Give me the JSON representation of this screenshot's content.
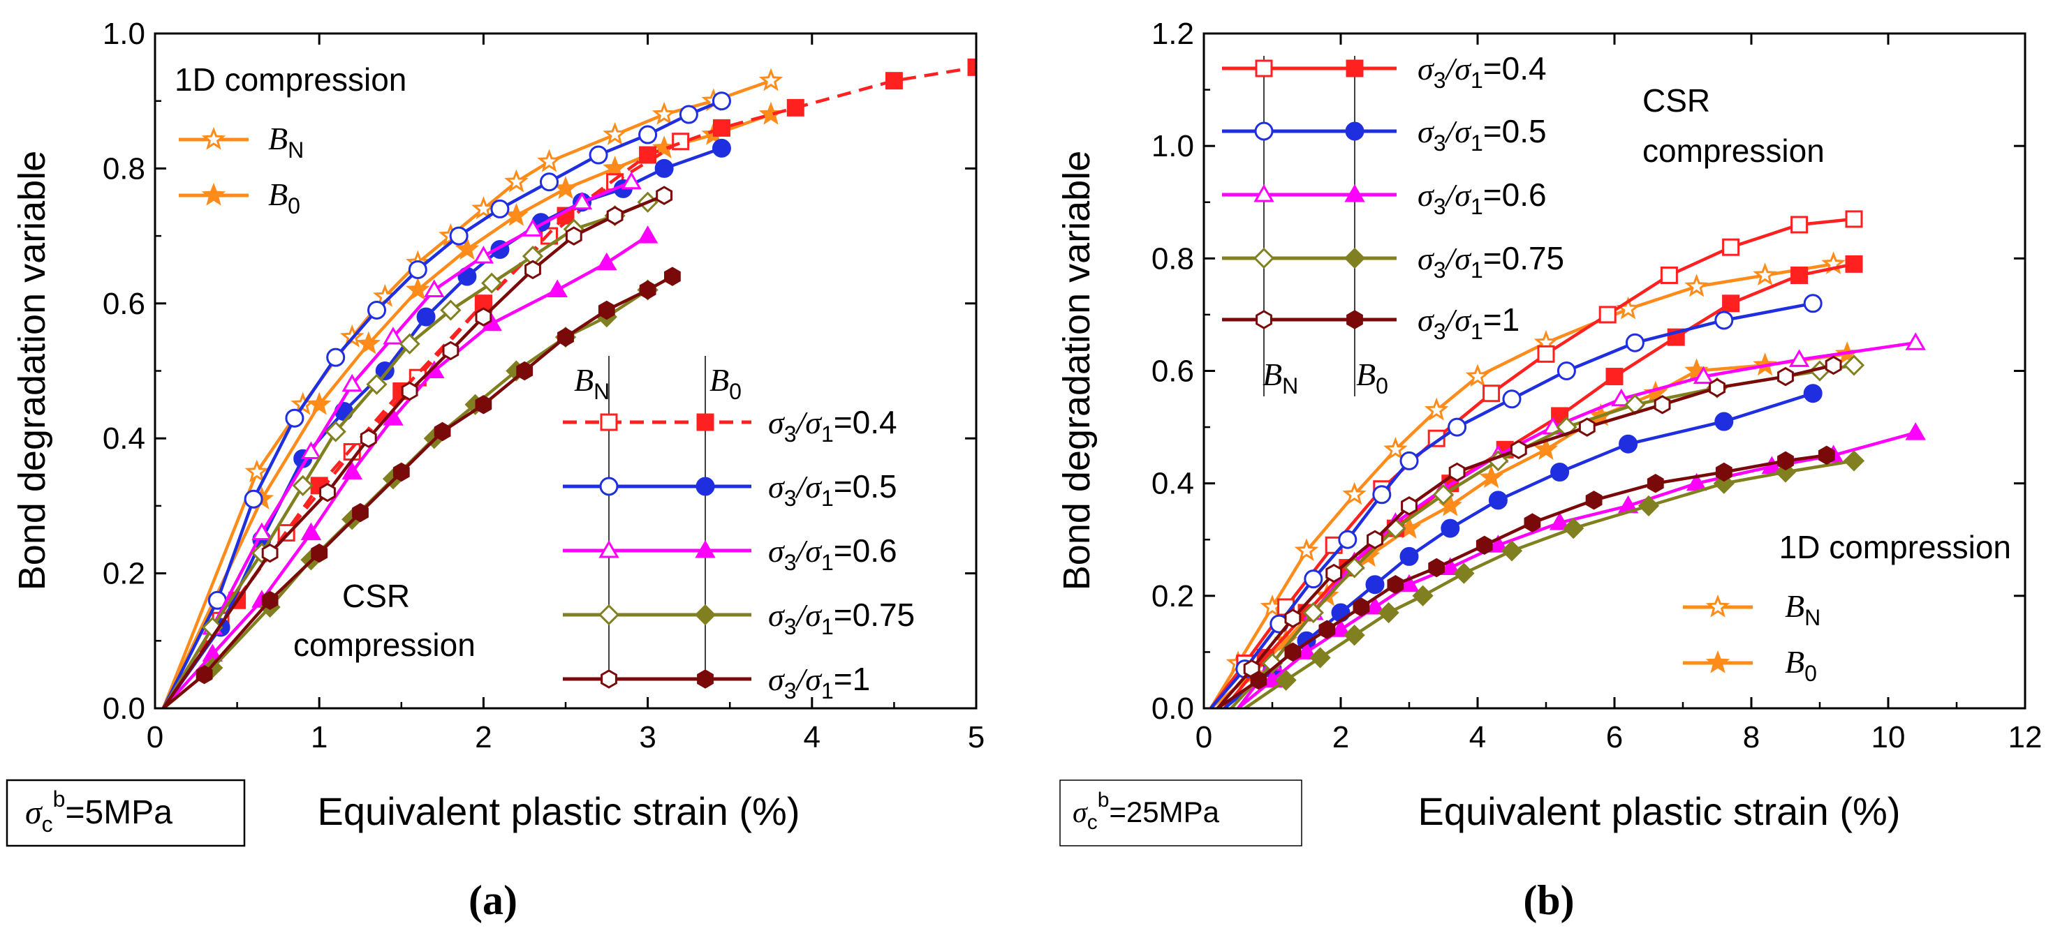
{
  "chart_data": [
    {
      "type": "line",
      "panel_label": "(a)",
      "xlabel": "Equivalent plastic strain (%)",
      "ylabel": "Bond degradation variable",
      "xlim": [
        0,
        5
      ],
      "ylim": [
        0,
        1.0
      ],
      "xticks": [
        "0",
        "1",
        "2",
        "3",
        "4",
        "5"
      ],
      "yticks": [
        "0.0",
        "0.2",
        "0.4",
        "0.6",
        "0.8",
        "1.0"
      ],
      "condition": {
        "symbol": "σ",
        "sub": "c",
        "sup": "b",
        "value": "=5MPa"
      },
      "legend_group_1d": {
        "title": "1D compression",
        "entries": [
          {
            "sym": "B",
            "sub": "N",
            "marker": "star-open"
          },
          {
            "sym": "B",
            "sub": "0",
            "marker": "star-filled"
          }
        ]
      },
      "legend_group_csr": {
        "title_lines": [
          "CSR",
          "compression"
        ],
        "col_headers": [
          {
            "sym": "B",
            "sub": "N"
          },
          {
            "sym": "B",
            "sub": "0"
          }
        ],
        "ratio_entries": [
          {
            "prefix": "σ",
            "sub_a": "3",
            "mid": "/σ",
            "sub_b": "1",
            "value": "=0.4"
          },
          {
            "prefix": "σ",
            "sub_a": "3",
            "mid": "/σ",
            "sub_b": "1",
            "value": "=0.5"
          },
          {
            "prefix": "σ",
            "sub_a": "3",
            "mid": "/σ",
            "sub_b": "1",
            "value": "=0.6"
          },
          {
            "prefix": "σ",
            "sub_a": "3",
            "mid": "/σ",
            "sub_b": "1",
            "value": "=0.75"
          },
          {
            "prefix": "σ",
            "sub_a": "3",
            "mid": "/σ",
            "sub_b": "1",
            "value": "=1"
          }
        ]
      },
      "series": [
        {
          "name": "1D B_N",
          "color": "#FF8C1A",
          "marker": "star",
          "filled": false,
          "x": [
            0.05,
            0.62,
            0.9,
            1.2,
            1.4,
            1.6,
            1.8,
            2.0,
            2.2,
            2.4,
            2.8,
            3.1,
            3.4,
            3.75
          ],
          "y": [
            0.0,
            0.35,
            0.45,
            0.55,
            0.61,
            0.66,
            0.7,
            0.74,
            0.78,
            0.81,
            0.85,
            0.88,
            0.9,
            0.93
          ]
        },
        {
          "name": "1D B_0",
          "color": "#FF8C1A",
          "marker": "star",
          "filled": true,
          "x": [
            0.05,
            0.65,
            1.0,
            1.3,
            1.6,
            1.9,
            2.2,
            2.5,
            2.8,
            3.1,
            3.4,
            3.75
          ],
          "y": [
            0.0,
            0.31,
            0.45,
            0.54,
            0.62,
            0.68,
            0.73,
            0.77,
            0.8,
            0.83,
            0.85,
            0.88
          ]
        },
        {
          "name": "σ3/σ1=0.4 B_N",
          "color": "#FF2020",
          "marker": "square",
          "filled": false,
          "dashed": true,
          "x": [
            0.05,
            0.4,
            0.8,
            1.2,
            1.6,
            2.0,
            2.4,
            2.8,
            3.2
          ],
          "y": [
            0.0,
            0.13,
            0.26,
            0.38,
            0.49,
            0.6,
            0.7,
            0.78,
            0.84
          ]
        },
        {
          "name": "σ3/σ1=0.4 B_0",
          "color": "#FF2020",
          "marker": "square",
          "filled": true,
          "dashed": true,
          "x": [
            0.05,
            0.5,
            1.0,
            1.5,
            2.0,
            2.5,
            3.0,
            3.45,
            3.9,
            4.5,
            5.0
          ],
          "y": [
            0.0,
            0.16,
            0.33,
            0.47,
            0.6,
            0.73,
            0.82,
            0.86,
            0.89,
            0.93,
            0.95
          ]
        },
        {
          "name": "σ3/σ1=0.5 B_N",
          "color": "#1F2FE0",
          "marker": "circle",
          "filled": false,
          "x": [
            0.05,
            0.38,
            0.6,
            0.85,
            1.1,
            1.35,
            1.6,
            1.85,
            2.1,
            2.4,
            2.7,
            3.0,
            3.25,
            3.45
          ],
          "y": [
            0.0,
            0.16,
            0.31,
            0.43,
            0.52,
            0.59,
            0.65,
            0.7,
            0.74,
            0.78,
            0.82,
            0.85,
            0.88,
            0.9
          ]
        },
        {
          "name": "σ3/σ1=0.5 B_0",
          "color": "#1F2FE0",
          "marker": "circle",
          "filled": true,
          "x": [
            0.05,
            0.4,
            0.65,
            0.9,
            1.15,
            1.4,
            1.65,
            1.9,
            2.1,
            2.35,
            2.6,
            2.85,
            3.1,
            3.45
          ],
          "y": [
            0.0,
            0.12,
            0.25,
            0.37,
            0.44,
            0.5,
            0.58,
            0.64,
            0.68,
            0.72,
            0.75,
            0.77,
            0.8,
            0.83
          ]
        },
        {
          "name": "σ3/σ1=0.6 B_N",
          "color": "#FF00FF",
          "marker": "triangle",
          "filled": false,
          "x": [
            0.05,
            0.35,
            0.65,
            0.95,
            1.2,
            1.45,
            1.7,
            2.0,
            2.3,
            2.6,
            2.9
          ],
          "y": [
            0.0,
            0.12,
            0.26,
            0.38,
            0.48,
            0.55,
            0.62,
            0.67,
            0.71,
            0.75,
            0.78
          ]
        },
        {
          "name": "σ3/σ1=0.6 B_0",
          "color": "#FF00FF",
          "marker": "triangle",
          "filled": true,
          "x": [
            0.05,
            0.35,
            0.65,
            0.95,
            1.2,
            1.45,
            1.7,
            2.05,
            2.45,
            2.75,
            3.0
          ],
          "y": [
            0.0,
            0.08,
            0.16,
            0.26,
            0.35,
            0.43,
            0.5,
            0.57,
            0.62,
            0.66,
            0.7
          ]
        },
        {
          "name": "σ3/σ1=0.75 B_N",
          "color": "#808020",
          "marker": "diamond",
          "filled": false,
          "x": [
            0.05,
            0.35,
            0.65,
            0.9,
            1.1,
            1.35,
            1.55,
            1.8,
            2.05,
            2.3,
            2.55,
            2.8,
            3.0
          ],
          "y": [
            0.0,
            0.12,
            0.23,
            0.33,
            0.41,
            0.48,
            0.54,
            0.59,
            0.63,
            0.67,
            0.71,
            0.73,
            0.75
          ]
        },
        {
          "name": "σ3/σ1=0.75 B_0",
          "color": "#808020",
          "marker": "diamond",
          "filled": true,
          "x": [
            0.05,
            0.35,
            0.7,
            0.95,
            1.2,
            1.45,
            1.7,
            1.95,
            2.2,
            2.5,
            2.75,
            3.0
          ],
          "y": [
            0.0,
            0.06,
            0.15,
            0.22,
            0.28,
            0.34,
            0.4,
            0.45,
            0.5,
            0.55,
            0.58,
            0.62
          ]
        },
        {
          "name": "σ3/σ1=1 B_N",
          "color": "#7A0A0A",
          "marker": "hexagon",
          "filled": false,
          "x": [
            0.05,
            0.7,
            1.05,
            1.3,
            1.55,
            1.8,
            2.0,
            2.3,
            2.55,
            2.8,
            3.1
          ],
          "y": [
            0.0,
            0.23,
            0.32,
            0.4,
            0.47,
            0.53,
            0.58,
            0.65,
            0.7,
            0.73,
            0.76
          ]
        },
        {
          "name": "σ3/σ1=1 B_0",
          "color": "#7A0A0A",
          "marker": "hexagon",
          "filled": true,
          "x": [
            0.05,
            0.3,
            0.7,
            1.0,
            1.25,
            1.5,
            1.75,
            2.0,
            2.25,
            2.5,
            2.75,
            3.0,
            3.15
          ],
          "y": [
            0.0,
            0.05,
            0.16,
            0.23,
            0.29,
            0.35,
            0.41,
            0.45,
            0.5,
            0.55,
            0.59,
            0.62,
            0.64
          ]
        }
      ]
    },
    {
      "type": "line",
      "panel_label": "(b)",
      "xlabel": "Equivalent plastic strain (%)",
      "ylabel": "Bond degradation variable",
      "xlim": [
        0,
        12
      ],
      "ylim": [
        0,
        1.2
      ],
      "xticks": [
        "0",
        "2",
        "4",
        "6",
        "8",
        "10",
        "12"
      ],
      "yticks": [
        "0.0",
        "0.2",
        "0.4",
        "0.6",
        "0.8",
        "1.0",
        "1.2"
      ],
      "condition": {
        "symbol": "σ",
        "sub": "c",
        "sup": "b",
        "value": "=25MPa"
      },
      "legend_group_1d": {
        "title": "1D compression",
        "entries": [
          {
            "sym": "B",
            "sub": "N",
            "marker": "star-open"
          },
          {
            "sym": "B",
            "sub": "0",
            "marker": "star-filled"
          }
        ]
      },
      "legend_group_csr": {
        "title_lines": [
          "CSR",
          "compression"
        ],
        "col_headers": [
          {
            "sym": "B",
            "sub": "N"
          },
          {
            "sym": "B",
            "sub": "0"
          }
        ],
        "ratio_entries": [
          {
            "prefix": "σ",
            "sub_a": "3",
            "mid": "/σ",
            "sub_b": "1",
            "value": "=0.4"
          },
          {
            "prefix": "σ",
            "sub_a": "3",
            "mid": "/σ",
            "sub_b": "1",
            "value": "=0.5"
          },
          {
            "prefix": "σ",
            "sub_a": "3",
            "mid": "/σ",
            "sub_b": "1",
            "value": "=0.6"
          },
          {
            "prefix": "σ",
            "sub_a": "3",
            "mid": "/σ",
            "sub_b": "1",
            "value": "=0.75"
          },
          {
            "prefix": "σ",
            "sub_a": "3",
            "mid": "/σ",
            "sub_b": "1",
            "value": "=1"
          }
        ]
      },
      "series": [
        {
          "name": "1D B_N",
          "color": "#FF8C1A",
          "marker": "star",
          "filled": false,
          "x": [
            0.1,
            0.5,
            1.0,
            1.5,
            2.2,
            2.8,
            3.4,
            4.0,
            5.0,
            6.2,
            7.2,
            8.2,
            9.2
          ],
          "y": [
            0.0,
            0.08,
            0.18,
            0.28,
            0.38,
            0.46,
            0.53,
            0.59,
            0.65,
            0.71,
            0.75,
            0.77,
            0.79
          ]
        },
        {
          "name": "1D B_0",
          "color": "#FF8C1A",
          "marker": "star",
          "filled": true,
          "x": [
            0.1,
            0.7,
            1.2,
            1.8,
            2.4,
            3.0,
            3.6,
            4.2,
            5.0,
            5.8,
            6.6,
            7.2,
            8.2,
            9.4
          ],
          "y": [
            0.0,
            0.06,
            0.12,
            0.2,
            0.27,
            0.32,
            0.36,
            0.41,
            0.46,
            0.52,
            0.56,
            0.6,
            0.61,
            0.63
          ]
        },
        {
          "name": "σ3/σ1=0.4 B_N",
          "color": "#FF2020",
          "marker": "square",
          "filled": false,
          "x": [
            0.1,
            0.6,
            1.2,
            1.9,
            2.6,
            3.4,
            4.2,
            5.0,
            5.9,
            6.8,
            7.7,
            8.7,
            9.5
          ],
          "y": [
            0.0,
            0.08,
            0.18,
            0.29,
            0.39,
            0.48,
            0.56,
            0.63,
            0.7,
            0.77,
            0.82,
            0.86,
            0.87
          ]
        },
        {
          "name": "σ3/σ1=0.4 B_0",
          "color": "#FF2020",
          "marker": "square",
          "filled": true,
          "x": [
            0.3,
            0.9,
            1.5,
            2.1,
            2.8,
            3.6,
            4.4,
            5.2,
            6.0,
            6.9,
            7.7,
            8.7,
            9.5
          ],
          "y": [
            0.0,
            0.09,
            0.17,
            0.25,
            0.32,
            0.4,
            0.46,
            0.52,
            0.59,
            0.66,
            0.72,
            0.77,
            0.79
          ]
        },
        {
          "name": "σ3/σ1=0.5 B_N",
          "color": "#1F2FE0",
          "marker": "circle",
          "filled": false,
          "x": [
            0.1,
            0.6,
            1.1,
            1.6,
            2.1,
            2.6,
            3.0,
            3.7,
            4.5,
            5.3,
            6.3,
            7.6,
            8.9
          ],
          "y": [
            0.0,
            0.07,
            0.15,
            0.23,
            0.3,
            0.38,
            0.44,
            0.5,
            0.55,
            0.6,
            0.65,
            0.69,
            0.72
          ]
        },
        {
          "name": "σ3/σ1=0.5 B_0",
          "color": "#1F2FE0",
          "marker": "circle",
          "filled": true,
          "x": [
            0.3,
            1.0,
            1.5,
            2.0,
            2.5,
            3.0,
            3.6,
            4.3,
            5.2,
            6.2,
            7.6,
            8.9
          ],
          "y": [
            0.0,
            0.07,
            0.12,
            0.17,
            0.22,
            0.27,
            0.32,
            0.37,
            0.42,
            0.47,
            0.51,
            0.56
          ]
        },
        {
          "name": "σ3/σ1=0.6 B_N",
          "color": "#FF00FF",
          "marker": "triangle",
          "filled": false,
          "x": [
            0.5,
            1.0,
            1.6,
            2.2,
            2.8,
            3.5,
            4.3,
            5.1,
            6.1,
            7.3,
            8.7,
            10.4
          ],
          "y": [
            0.0,
            0.08,
            0.17,
            0.26,
            0.33,
            0.39,
            0.45,
            0.5,
            0.55,
            0.59,
            0.62,
            0.65
          ]
        },
        {
          "name": "σ3/σ1=0.6 B_0",
          "color": "#FF00FF",
          "marker": "triangle",
          "filled": true,
          "x": [
            0.5,
            1.0,
            1.5,
            2.0,
            2.5,
            3.0,
            3.6,
            4.3,
            5.2,
            6.2,
            7.2,
            8.3,
            9.2,
            10.4
          ],
          "y": [
            0.0,
            0.05,
            0.1,
            0.14,
            0.18,
            0.22,
            0.25,
            0.29,
            0.33,
            0.36,
            0.4,
            0.43,
            0.45,
            0.49
          ]
        },
        {
          "name": "σ3/σ1=0.75 B_N",
          "color": "#808020",
          "marker": "diamond",
          "filled": false,
          "x": [
            0.4,
            1.0,
            1.6,
            2.2,
            2.8,
            3.5,
            4.3,
            5.3,
            6.3,
            7.5,
            9.0,
            9.5
          ],
          "y": [
            0.0,
            0.08,
            0.17,
            0.25,
            0.32,
            0.38,
            0.44,
            0.5,
            0.54,
            0.57,
            0.6,
            0.61
          ]
        },
        {
          "name": "σ3/σ1=0.75 B_0",
          "color": "#808020",
          "marker": "diamond",
          "filled": true,
          "x": [
            0.6,
            1.2,
            1.7,
            2.2,
            2.7,
            3.2,
            3.8,
            4.5,
            5.4,
            6.5,
            7.6,
            8.5,
            9.5
          ],
          "y": [
            0.0,
            0.05,
            0.09,
            0.13,
            0.17,
            0.2,
            0.24,
            0.28,
            0.32,
            0.36,
            0.4,
            0.42,
            0.44
          ]
        },
        {
          "name": "σ3/σ1=1 B_N",
          "color": "#7A0A0A",
          "marker": "hexagon",
          "filled": false,
          "x": [
            0.2,
            0.7,
            1.3,
            1.9,
            2.5,
            3.0,
            3.7,
            4.6,
            5.6,
            6.7,
            7.5,
            8.5,
            9.2
          ],
          "y": [
            0.0,
            0.07,
            0.16,
            0.24,
            0.3,
            0.36,
            0.42,
            0.46,
            0.5,
            0.54,
            0.57,
            0.59,
            0.61
          ]
        },
        {
          "name": "σ3/σ1=1 B_0",
          "color": "#7A0A0A",
          "marker": "hexagon",
          "filled": true,
          "x": [
            0.2,
            0.8,
            1.3,
            1.8,
            2.3,
            2.8,
            3.4,
            4.1,
            4.8,
            5.7,
            6.6,
            7.6,
            8.5,
            9.1
          ],
          "y": [
            0.0,
            0.05,
            0.1,
            0.14,
            0.18,
            0.22,
            0.25,
            0.29,
            0.33,
            0.37,
            0.4,
            0.42,
            0.44,
            0.45
          ]
        }
      ]
    }
  ]
}
